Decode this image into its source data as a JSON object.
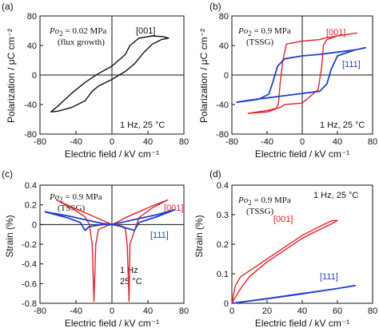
{
  "figure": {
    "shared_ylabel_top": "Polarization / μC cm⁻²",
    "shared_ylabel_bottom": "Strain (%)",
    "xlabel": "Electric field / kV cm⁻¹"
  },
  "chart_data": [
    {
      "id": "a",
      "type": "line",
      "panel_label": "(a)",
      "annotation": {
        "prefix": "Po",
        "sub": "2",
        "suffix": " = 0.02 MPa",
        "line2": "(flux growth)"
      },
      "condition": {
        "line1": "1 Hz, 25 °C"
      },
      "xlabel": "Electric field / kV cm⁻¹",
      "ylabel": "Polarization / μC cm⁻²",
      "xlim": [
        -80,
        80
      ],
      "ylim": [
        -80,
        80
      ],
      "xticks": [
        -80,
        -40,
        0,
        40,
        80
      ],
      "yticks": [
        -80,
        -40,
        0,
        40,
        80
      ],
      "xtick_labels": [
        "-80",
        "-40",
        "0",
        "40",
        "80"
      ],
      "ytick_labels": [
        "-80",
        "-40",
        "0",
        "40",
        "80"
      ],
      "colors": {
        "[001]": "#111111"
      },
      "series": [
        {
          "name": "[001]",
          "color": "#111111",
          "x": [
            -68,
            -60,
            -45,
            -30,
            -22,
            -15,
            0,
            15,
            25,
            35,
            45,
            55,
            63,
            57,
            45,
            30,
            20,
            15,
            0,
            -15,
            -30,
            -45,
            -60,
            -68
          ],
          "y": [
            -50,
            -49,
            -44,
            -35,
            -22,
            -15,
            -6,
            5,
            15,
            30,
            42,
            48,
            50,
            52,
            53,
            50,
            40,
            28,
            12,
            2,
            -10,
            -25,
            -42,
            -50
          ]
        }
      ],
      "series_label_texts": [
        "[001]"
      ]
    },
    {
      "id": "b",
      "type": "line",
      "panel_label": "(b)",
      "annotation": {
        "prefix": "Po",
        "sub": "2",
        "suffix": " = 0.9 MPa",
        "line2": "(TSSG)"
      },
      "condition": {
        "line1": "1 Hz, 25 °C"
      },
      "xlabel": "Electric field / kV cm⁻¹",
      "ylabel": "Polarization / μC cm⁻²",
      "xlim": [
        -80,
        80
      ],
      "ylim": [
        -80,
        80
      ],
      "xticks": [
        -80,
        -40,
        0,
        40,
        80
      ],
      "yticks": [
        -80,
        -40,
        0,
        40,
        80
      ],
      "xtick_labels": [
        "-80",
        "-40",
        "0",
        "40",
        "80"
      ],
      "ytick_labels": [
        "-80",
        "-40",
        "0",
        "40",
        "80"
      ],
      "colors": {
        "[001]": "#e8202a",
        "[111]": "#1f3fd0"
      },
      "series": [
        {
          "name": "[001]",
          "color": "#e8202a",
          "x": [
            -62,
            -40,
            -30,
            -27,
            -25,
            -22,
            -18,
            0,
            20,
            25,
            40,
            62,
            62,
            40,
            28,
            24,
            22,
            18,
            0,
            -20,
            -25,
            -40,
            -62
          ],
          "y": [
            -52,
            -50,
            -46,
            -38,
            -10,
            20,
            42,
            46,
            48,
            50,
            53,
            57,
            57,
            53,
            48,
            40,
            10,
            -20,
            -38,
            -40,
            -44,
            -48,
            -52
          ]
        },
        {
          "name": "[111]",
          "color": "#1f3fd0",
          "x": [
            -75,
            -50,
            -38,
            -33,
            -28,
            -20,
            0,
            20,
            40,
            60,
            72,
            72,
            60,
            40,
            33,
            28,
            20,
            0,
            -20,
            -40,
            -60,
            -75
          ],
          "y": [
            -37,
            -33,
            -26,
            -8,
            12,
            22,
            26,
            28,
            31,
            34,
            37,
            37,
            34,
            26,
            8,
            -12,
            -22,
            -25,
            -28,
            -31,
            -34,
            -37
          ]
        }
      ],
      "series_label_texts": [
        "[001]",
        "[111]"
      ]
    },
    {
      "id": "c",
      "type": "line",
      "panel_label": "(c)",
      "annotation": {
        "prefix": "Po",
        "sub": "2",
        "suffix": " = 0.9 MPa",
        "line2": "(TSSG)"
      },
      "condition": {
        "line1": "1 Hz",
        "line2": "25 °C"
      },
      "xlabel": "Electric field / kV cm⁻¹",
      "ylabel": "Strain (%)",
      "xlim": [
        -80,
        80
      ],
      "ylim": [
        -0.8,
        0.4
      ],
      "xticks": [
        -80,
        -40,
        0,
        40,
        80
      ],
      "yticks": [
        -0.8,
        -0.6,
        -0.4,
        -0.2,
        0,
        0.2,
        0.4
      ],
      "xtick_labels": [
        "-80",
        "-40",
        "0",
        "40",
        "80"
      ],
      "ytick_labels": [
        "-0.8",
        "-0.6",
        "-0.4",
        "-0.2",
        "0",
        "0.2",
        "0.4"
      ],
      "colors": {
        "[001]": "#e8202a",
        "[111]": "#1f3fd0"
      },
      "series": [
        {
          "name": "[001]",
          "color": "#e8202a",
          "x": [
            -62,
            -45,
            -30,
            -25,
            -22,
            -20,
            -18,
            -15,
            -5,
            0,
            5,
            15,
            30,
            45,
            62,
            45,
            30,
            20,
            19,
            17,
            15,
            12,
            5,
            0,
            -5,
            -15,
            -30,
            -45,
            -62
          ],
          "y": [
            0.25,
            0.17,
            0.08,
            0.0,
            -0.2,
            -0.78,
            -0.2,
            -0.05,
            -0.01,
            0.0,
            0.02,
            0.07,
            0.13,
            0.19,
            0.25,
            0.17,
            0.07,
            -0.2,
            -0.78,
            -0.2,
            -0.05,
            -0.02,
            0.0,
            0.0,
            0.02,
            0.06,
            0.12,
            0.18,
            0.25
          ]
        },
        {
          "name": "[111]",
          "color": "#1f3fd0",
          "x": [
            -75,
            -50,
            -35,
            -30,
            -25,
            -10,
            0,
            10,
            30,
            50,
            70,
            50,
            30,
            25,
            10,
            0,
            -10,
            -30,
            -50,
            -75
          ],
          "y": [
            0.13,
            0.07,
            0.02,
            -0.06,
            -0.02,
            0.0,
            0.0,
            0.02,
            0.06,
            0.1,
            0.15,
            0.08,
            0.02,
            -0.06,
            -0.02,
            0.0,
            0.01,
            0.05,
            0.09,
            0.13
          ]
        }
      ],
      "series_label_texts": [
        "[001]",
        "[111]"
      ]
    },
    {
      "id": "d",
      "type": "line",
      "panel_label": "(d)",
      "annotation": {
        "prefix": "Po",
        "sub": "2",
        "suffix": " = 0.9 MPa",
        "line2": "(TSSG)"
      },
      "condition": {
        "line1": "1 Hz, 25 °C"
      },
      "xlabel": "Electric field / kV cm⁻¹",
      "ylabel": "Strain (%)",
      "xlim": [
        0,
        80
      ],
      "ylim": [
        0,
        0.4
      ],
      "xticks": [
        0,
        20,
        40,
        60,
        80
      ],
      "yticks": [
        0,
        0.1,
        0.2,
        0.3,
        0.4
      ],
      "xtick_labels": [
        "0",
        "20",
        "40",
        "60",
        "80"
      ],
      "ytick_labels": [
        "0",
        "0.1",
        "0.2",
        "0.3",
        "0.4"
      ],
      "colors": {
        "[001]": "#e8202a",
        "[111]": "#1f3fd0"
      },
      "series": [
        {
          "name": "[001]",
          "color": "#e8202a",
          "x": [
            0,
            2,
            5,
            10,
            20,
            30,
            40,
            50,
            57,
            60,
            57,
            50,
            40,
            30,
            20,
            10,
            5,
            2,
            0
          ],
          "y": [
            0,
            0.02,
            0.05,
            0.09,
            0.14,
            0.18,
            0.22,
            0.25,
            0.27,
            0.28,
            0.28,
            0.26,
            0.23,
            0.19,
            0.15,
            0.11,
            0.09,
            0.06,
            0
          ]
        },
        {
          "name": "[111]",
          "color": "#1f3fd0",
          "x": [
            0,
            20,
            40,
            60,
            70,
            60,
            40,
            20,
            0
          ],
          "y": [
            0,
            0.015,
            0.032,
            0.05,
            0.06,
            0.05,
            0.033,
            0.016,
            0
          ]
        }
      ],
      "series_label_texts": [
        "[001]",
        "[111]"
      ]
    }
  ]
}
